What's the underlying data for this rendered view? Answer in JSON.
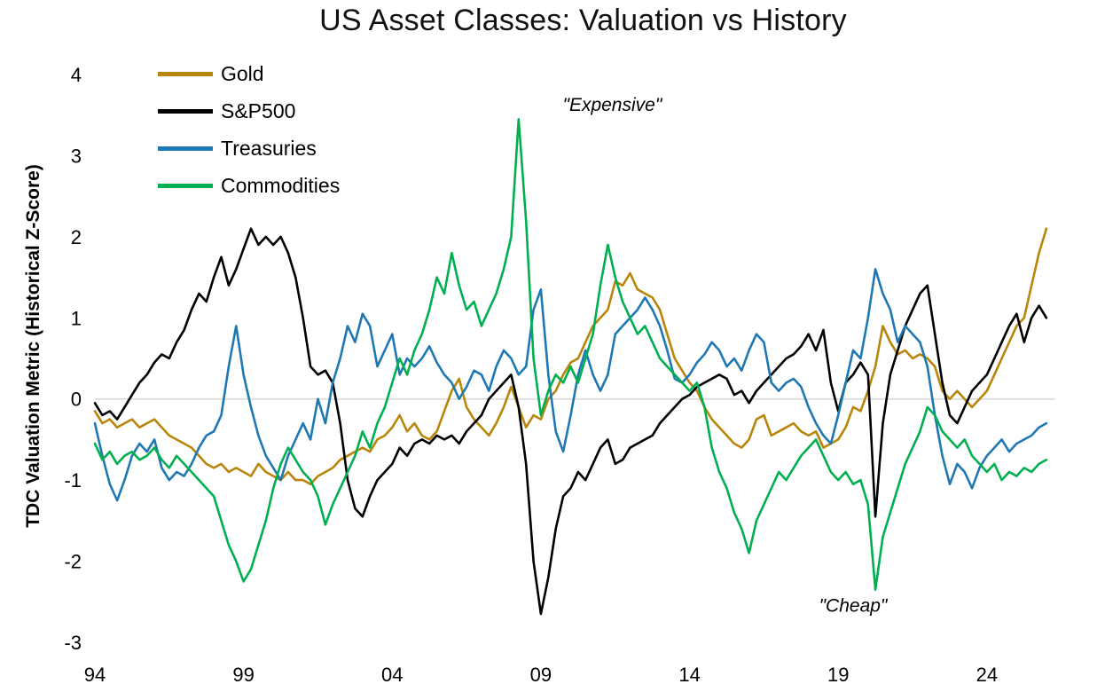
{
  "chart_data": {
    "type": "line",
    "title": "US Asset Classes: Valuation vs History",
    "xlabel": "",
    "ylabel": "TDC Valuation Metric (Historical Z-Score)",
    "xlim": [
      1994,
      2026.3
    ],
    "ylim": [
      -3,
      4
    ],
    "grid": "zero-line-only",
    "zero_line_color": "#D9D9D9",
    "legend_position": "top-left inside plot",
    "yticks": [
      {
        "value": 4,
        "label": "4"
      },
      {
        "value": 3,
        "label": "3"
      },
      {
        "value": 2,
        "label": "2"
      },
      {
        "value": 1,
        "label": "1"
      },
      {
        "value": 0,
        "label": "0"
      },
      {
        "value": -1,
        "label": "-1"
      },
      {
        "value": -2,
        "label": "-2"
      },
      {
        "value": -3,
        "label": "-3"
      }
    ],
    "xticks": [
      {
        "value": 1994,
        "label": "94"
      },
      {
        "value": 1999,
        "label": "99"
      },
      {
        "value": 2004,
        "label": "04"
      },
      {
        "value": 2009,
        "label": "09"
      },
      {
        "value": 2014,
        "label": "14"
      },
      {
        "value": 2019,
        "label": "19"
      },
      {
        "value": 2024,
        "label": "24"
      }
    ],
    "annotations": [
      {
        "name": "expensive",
        "text": "\"Expensive\"",
        "x": 2011.4,
        "y": 3.55
      },
      {
        "name": "cheap",
        "text": "\"Cheap\"",
        "x": 2019.5,
        "y": -2.62
      }
    ],
    "x": [
      1994,
      1994.25,
      1994.5,
      1994.75,
      1995,
      1995.25,
      1995.5,
      1995.75,
      1996,
      1996.25,
      1996.5,
      1996.75,
      1997,
      1997.25,
      1997.5,
      1997.75,
      1998,
      1998.25,
      1998.5,
      1998.75,
      1999,
      1999.25,
      1999.5,
      1999.75,
      2000,
      2000.25,
      2000.5,
      2000.75,
      2001,
      2001.25,
      2001.5,
      2001.75,
      2002,
      2002.25,
      2002.5,
      2002.75,
      2003,
      2003.25,
      2003.5,
      2003.75,
      2004,
      2004.25,
      2004.5,
      2004.75,
      2005,
      2005.25,
      2005.5,
      2005.75,
      2006,
      2006.25,
      2006.5,
      2006.75,
      2007,
      2007.25,
      2007.5,
      2007.75,
      2008,
      2008.25,
      2008.5,
      2008.75,
      2009,
      2009.25,
      2009.5,
      2009.75,
      2010,
      2010.25,
      2010.5,
      2010.75,
      2011,
      2011.25,
      2011.5,
      2011.75,
      2012,
      2012.25,
      2012.5,
      2012.75,
      2013,
      2013.25,
      2013.5,
      2013.75,
      2014,
      2014.25,
      2014.5,
      2014.75,
      2015,
      2015.25,
      2015.5,
      2015.75,
      2016,
      2016.25,
      2016.5,
      2016.75,
      2017,
      2017.25,
      2017.5,
      2017.75,
      2018,
      2018.25,
      2018.5,
      2018.75,
      2019,
      2019.25,
      2019.5,
      2019.75,
      2020,
      2020.25,
      2020.5,
      2020.75,
      2021,
      2021.25,
      2021.5,
      2021.75,
      2022,
      2022.25,
      2022.5,
      2022.75,
      2023,
      2023.25,
      2023.5,
      2023.75,
      2024,
      2024.25,
      2024.5,
      2024.75,
      2025,
      2025.25,
      2025.5,
      2025.75,
      2026
    ],
    "series": [
      {
        "name": "Gold",
        "color": "#B8860B",
        "values": [
          -0.15,
          -0.3,
          -0.25,
          -0.35,
          -0.3,
          -0.25,
          -0.35,
          -0.3,
          -0.25,
          -0.35,
          -0.45,
          -0.5,
          -0.55,
          -0.6,
          -0.7,
          -0.8,
          -0.85,
          -0.8,
          -0.9,
          -0.85,
          -0.9,
          -0.95,
          -0.8,
          -0.9,
          -0.95,
          -1.0,
          -0.9,
          -1.0,
          -1.0,
          -1.05,
          -0.95,
          -0.9,
          -0.85,
          -0.75,
          -0.7,
          -0.65,
          -0.6,
          -0.65,
          -0.5,
          -0.45,
          -0.35,
          -0.2,
          -0.4,
          -0.3,
          -0.45,
          -0.5,
          -0.4,
          -0.15,
          0.1,
          0.25,
          -0.1,
          -0.25,
          -0.35,
          -0.45,
          -0.3,
          -0.1,
          0.15,
          -0.1,
          -0.35,
          -0.2,
          -0.25,
          0.0,
          0.1,
          0.3,
          0.45,
          0.5,
          0.7,
          0.9,
          1.0,
          1.1,
          1.45,
          1.4,
          1.55,
          1.35,
          1.3,
          1.25,
          1.1,
          0.8,
          0.5,
          0.35,
          0.2,
          0.1,
          -0.1,
          -0.25,
          -0.35,
          -0.45,
          -0.55,
          -0.6,
          -0.5,
          -0.25,
          -0.2,
          -0.45,
          -0.4,
          -0.35,
          -0.3,
          -0.4,
          -0.45,
          -0.4,
          -0.6,
          -0.55,
          -0.5,
          -0.35,
          -0.1,
          -0.15,
          0.1,
          0.4,
          0.9,
          0.7,
          0.55,
          0.6,
          0.5,
          0.55,
          0.5,
          0.4,
          0.1,
          0.0,
          0.1,
          0.0,
          -0.1,
          0.0,
          0.1,
          0.3,
          0.5,
          0.7,
          0.9,
          1.0,
          1.4,
          1.8,
          2.1
        ]
      },
      {
        "name": "S&P500",
        "color": "#000000",
        "values": [
          -0.05,
          -0.2,
          -0.15,
          -0.25,
          -0.1,
          0.05,
          0.2,
          0.3,
          0.45,
          0.55,
          0.5,
          0.7,
          0.85,
          1.1,
          1.3,
          1.2,
          1.5,
          1.75,
          1.4,
          1.6,
          1.85,
          2.1,
          1.9,
          2.0,
          1.9,
          2.0,
          1.8,
          1.5,
          1.0,
          0.4,
          0.3,
          0.35,
          0.2,
          -0.3,
          -1.0,
          -1.35,
          -1.45,
          -1.2,
          -1.0,
          -0.9,
          -0.8,
          -0.6,
          -0.7,
          -0.55,
          -0.5,
          -0.55,
          -0.45,
          -0.5,
          -0.45,
          -0.55,
          -0.4,
          -0.3,
          -0.2,
          0.0,
          0.1,
          0.2,
          0.3,
          -0.1,
          -0.8,
          -2.0,
          -2.65,
          -2.2,
          -1.6,
          -1.2,
          -1.1,
          -0.9,
          -1.0,
          -0.8,
          -0.6,
          -0.5,
          -0.8,
          -0.75,
          -0.6,
          -0.55,
          -0.5,
          -0.45,
          -0.3,
          -0.2,
          -0.1,
          0.0,
          0.05,
          0.15,
          0.2,
          0.25,
          0.3,
          0.25,
          0.05,
          0.1,
          -0.05,
          0.1,
          0.2,
          0.3,
          0.4,
          0.5,
          0.55,
          0.65,
          0.8,
          0.6,
          0.85,
          0.2,
          -0.15,
          0.2,
          0.3,
          0.45,
          0.3,
          -1.45,
          -0.3,
          0.3,
          0.6,
          0.9,
          1.1,
          1.3,
          1.4,
          0.8,
          0.2,
          -0.2,
          -0.3,
          -0.1,
          0.1,
          0.2,
          0.3,
          0.5,
          0.7,
          0.9,
          1.05,
          0.7,
          1.0,
          1.15,
          1.0
        ]
      },
      {
        "name": "Treasuries",
        "color": "#1F78B4",
        "values": [
          -0.3,
          -0.7,
          -1.05,
          -1.25,
          -1.0,
          -0.7,
          -0.55,
          -0.65,
          -0.5,
          -0.85,
          -1.0,
          -0.9,
          -0.95,
          -0.8,
          -0.6,
          -0.45,
          -0.4,
          -0.2,
          0.4,
          0.9,
          0.3,
          -0.1,
          -0.45,
          -0.7,
          -0.85,
          -1.0,
          -0.7,
          -0.5,
          -0.3,
          -0.5,
          0.0,
          -0.3,
          0.2,
          0.5,
          0.9,
          0.7,
          1.05,
          0.9,
          0.4,
          0.6,
          0.8,
          0.3,
          0.5,
          0.4,
          0.5,
          0.65,
          0.45,
          0.3,
          0.2,
          0.0,
          0.15,
          0.35,
          0.3,
          0.1,
          0.4,
          0.6,
          0.5,
          0.3,
          0.4,
          1.1,
          1.35,
          0.3,
          -0.4,
          -0.65,
          -0.2,
          0.3,
          0.6,
          0.3,
          0.1,
          0.3,
          0.8,
          0.9,
          1.0,
          1.1,
          1.25,
          1.1,
          0.9,
          0.6,
          0.25,
          0.2,
          0.3,
          0.45,
          0.55,
          0.7,
          0.6,
          0.4,
          0.5,
          0.35,
          0.6,
          0.8,
          0.7,
          0.2,
          0.1,
          0.2,
          0.25,
          0.15,
          -0.1,
          -0.3,
          -0.45,
          -0.55,
          -0.2,
          0.2,
          0.6,
          0.5,
          1.0,
          1.6,
          1.3,
          1.1,
          0.7,
          0.9,
          0.8,
          0.7,
          0.4,
          -0.2,
          -0.7,
          -1.05,
          -0.8,
          -0.9,
          -1.1,
          -0.85,
          -0.7,
          -0.6,
          -0.5,
          -0.65,
          -0.55,
          -0.5,
          -0.45,
          -0.35,
          -0.3
        ]
      },
      {
        "name": "Commodities",
        "color": "#00B050",
        "values": [
          -0.55,
          -0.75,
          -0.65,
          -0.8,
          -0.7,
          -0.65,
          -0.75,
          -0.7,
          -0.6,
          -0.75,
          -0.85,
          -0.7,
          -0.8,
          -0.9,
          -1.0,
          -1.1,
          -1.2,
          -1.5,
          -1.8,
          -2.0,
          -2.25,
          -2.1,
          -1.8,
          -1.5,
          -1.1,
          -0.8,
          -0.6,
          -0.75,
          -0.9,
          -1.0,
          -1.2,
          -1.55,
          -1.3,
          -1.1,
          -0.9,
          -0.7,
          -0.4,
          -0.6,
          -0.3,
          -0.1,
          0.2,
          0.5,
          0.3,
          0.6,
          0.8,
          1.1,
          1.5,
          1.3,
          1.8,
          1.4,
          1.1,
          1.2,
          0.9,
          1.1,
          1.3,
          1.6,
          2.0,
          3.45,
          2.2,
          0.5,
          -0.2,
          0.1,
          0.3,
          0.2,
          0.4,
          0.2,
          0.5,
          0.8,
          1.4,
          1.9,
          1.5,
          1.2,
          1.0,
          0.8,
          0.9,
          0.7,
          0.5,
          0.4,
          0.3,
          0.2,
          0.1,
          0.2,
          -0.1,
          -0.6,
          -0.9,
          -1.1,
          -1.4,
          -1.6,
          -1.9,
          -1.5,
          -1.3,
          -1.1,
          -0.9,
          -1.0,
          -0.85,
          -0.7,
          -0.6,
          -0.5,
          -0.7,
          -0.9,
          -1.0,
          -0.9,
          -1.05,
          -1.0,
          -1.3,
          -2.35,
          -1.7,
          -1.4,
          -1.1,
          -0.8,
          -0.6,
          -0.4,
          -0.1,
          -0.2,
          -0.4,
          -0.5,
          -0.6,
          -0.5,
          -0.7,
          -0.8,
          -0.9,
          -0.8,
          -1.0,
          -0.9,
          -0.95,
          -0.85,
          -0.9,
          -0.8,
          -0.75
        ]
      }
    ]
  }
}
